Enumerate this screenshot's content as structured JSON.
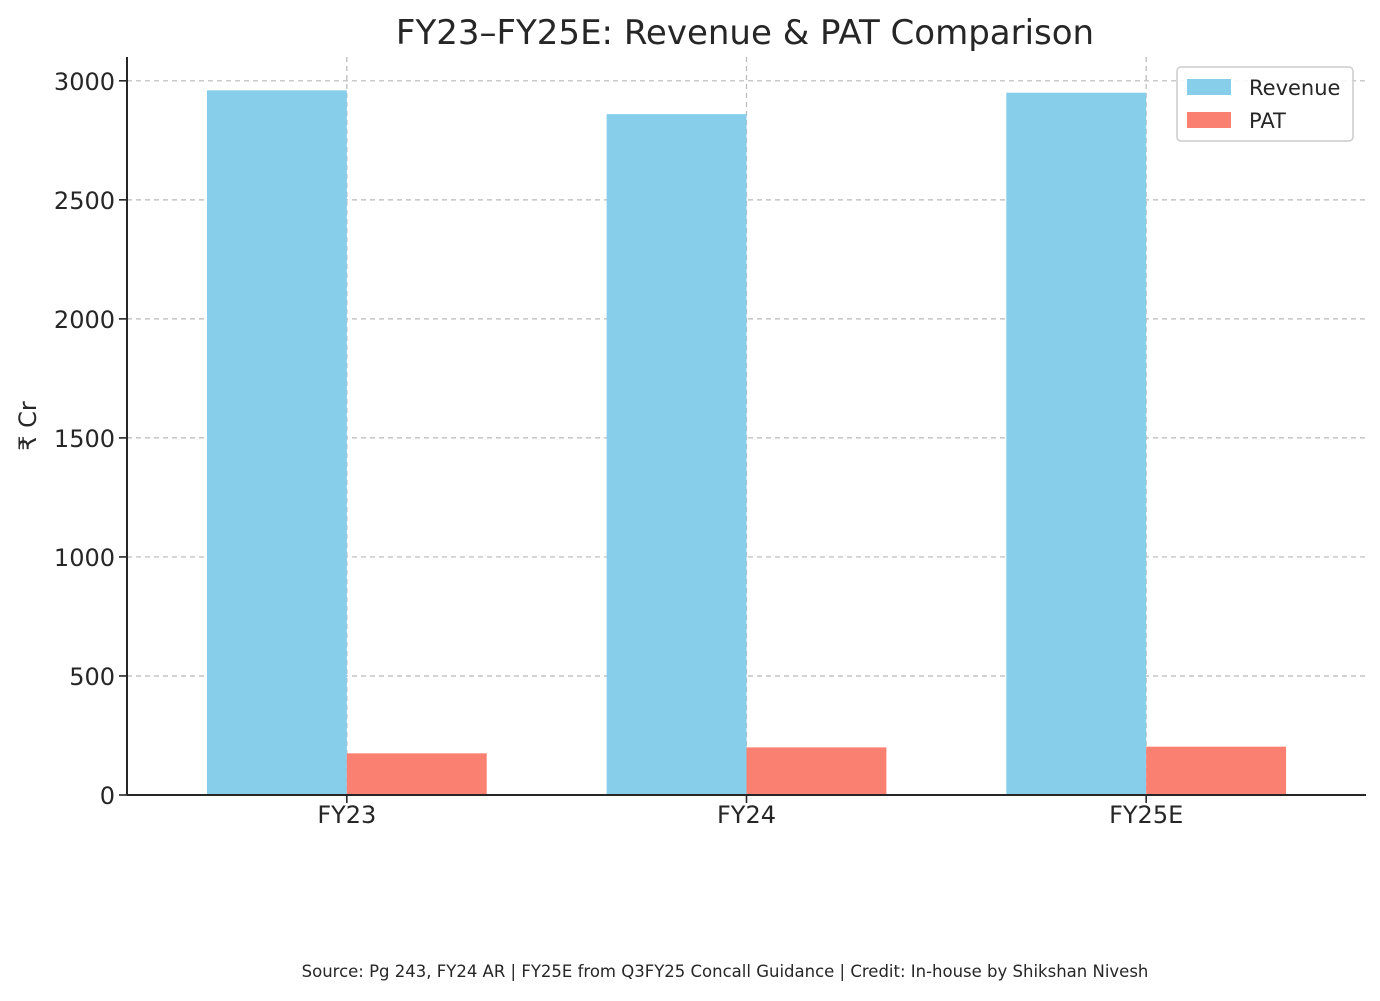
{
  "chart_data": {
    "type": "bar",
    "title": "FY23–FY25E: Revenue & PAT Comparison",
    "xlabel": "",
    "ylabel": "₹ Cr",
    "categories": [
      "FY23",
      "FY24",
      "FY25E"
    ],
    "series": [
      {
        "name": "Revenue",
        "values": [
          2960,
          2860,
          2950
        ],
        "color": "#87CEEB"
      },
      {
        "name": "PAT",
        "values": [
          175,
          200,
          203
        ],
        "color": "#FA8072"
      }
    ],
    "ylim": [
      0,
      3100
    ],
    "yticks": [
      0,
      500,
      1000,
      1500,
      2000,
      2500,
      3000
    ],
    "grid": true,
    "legend": "top-right"
  },
  "footer": {
    "source_text": "Source: Pg 243, FY24 AR | FY25E from Q3FY25 Concall Guidance | Credit: In-house by Shikshan Nivesh"
  }
}
